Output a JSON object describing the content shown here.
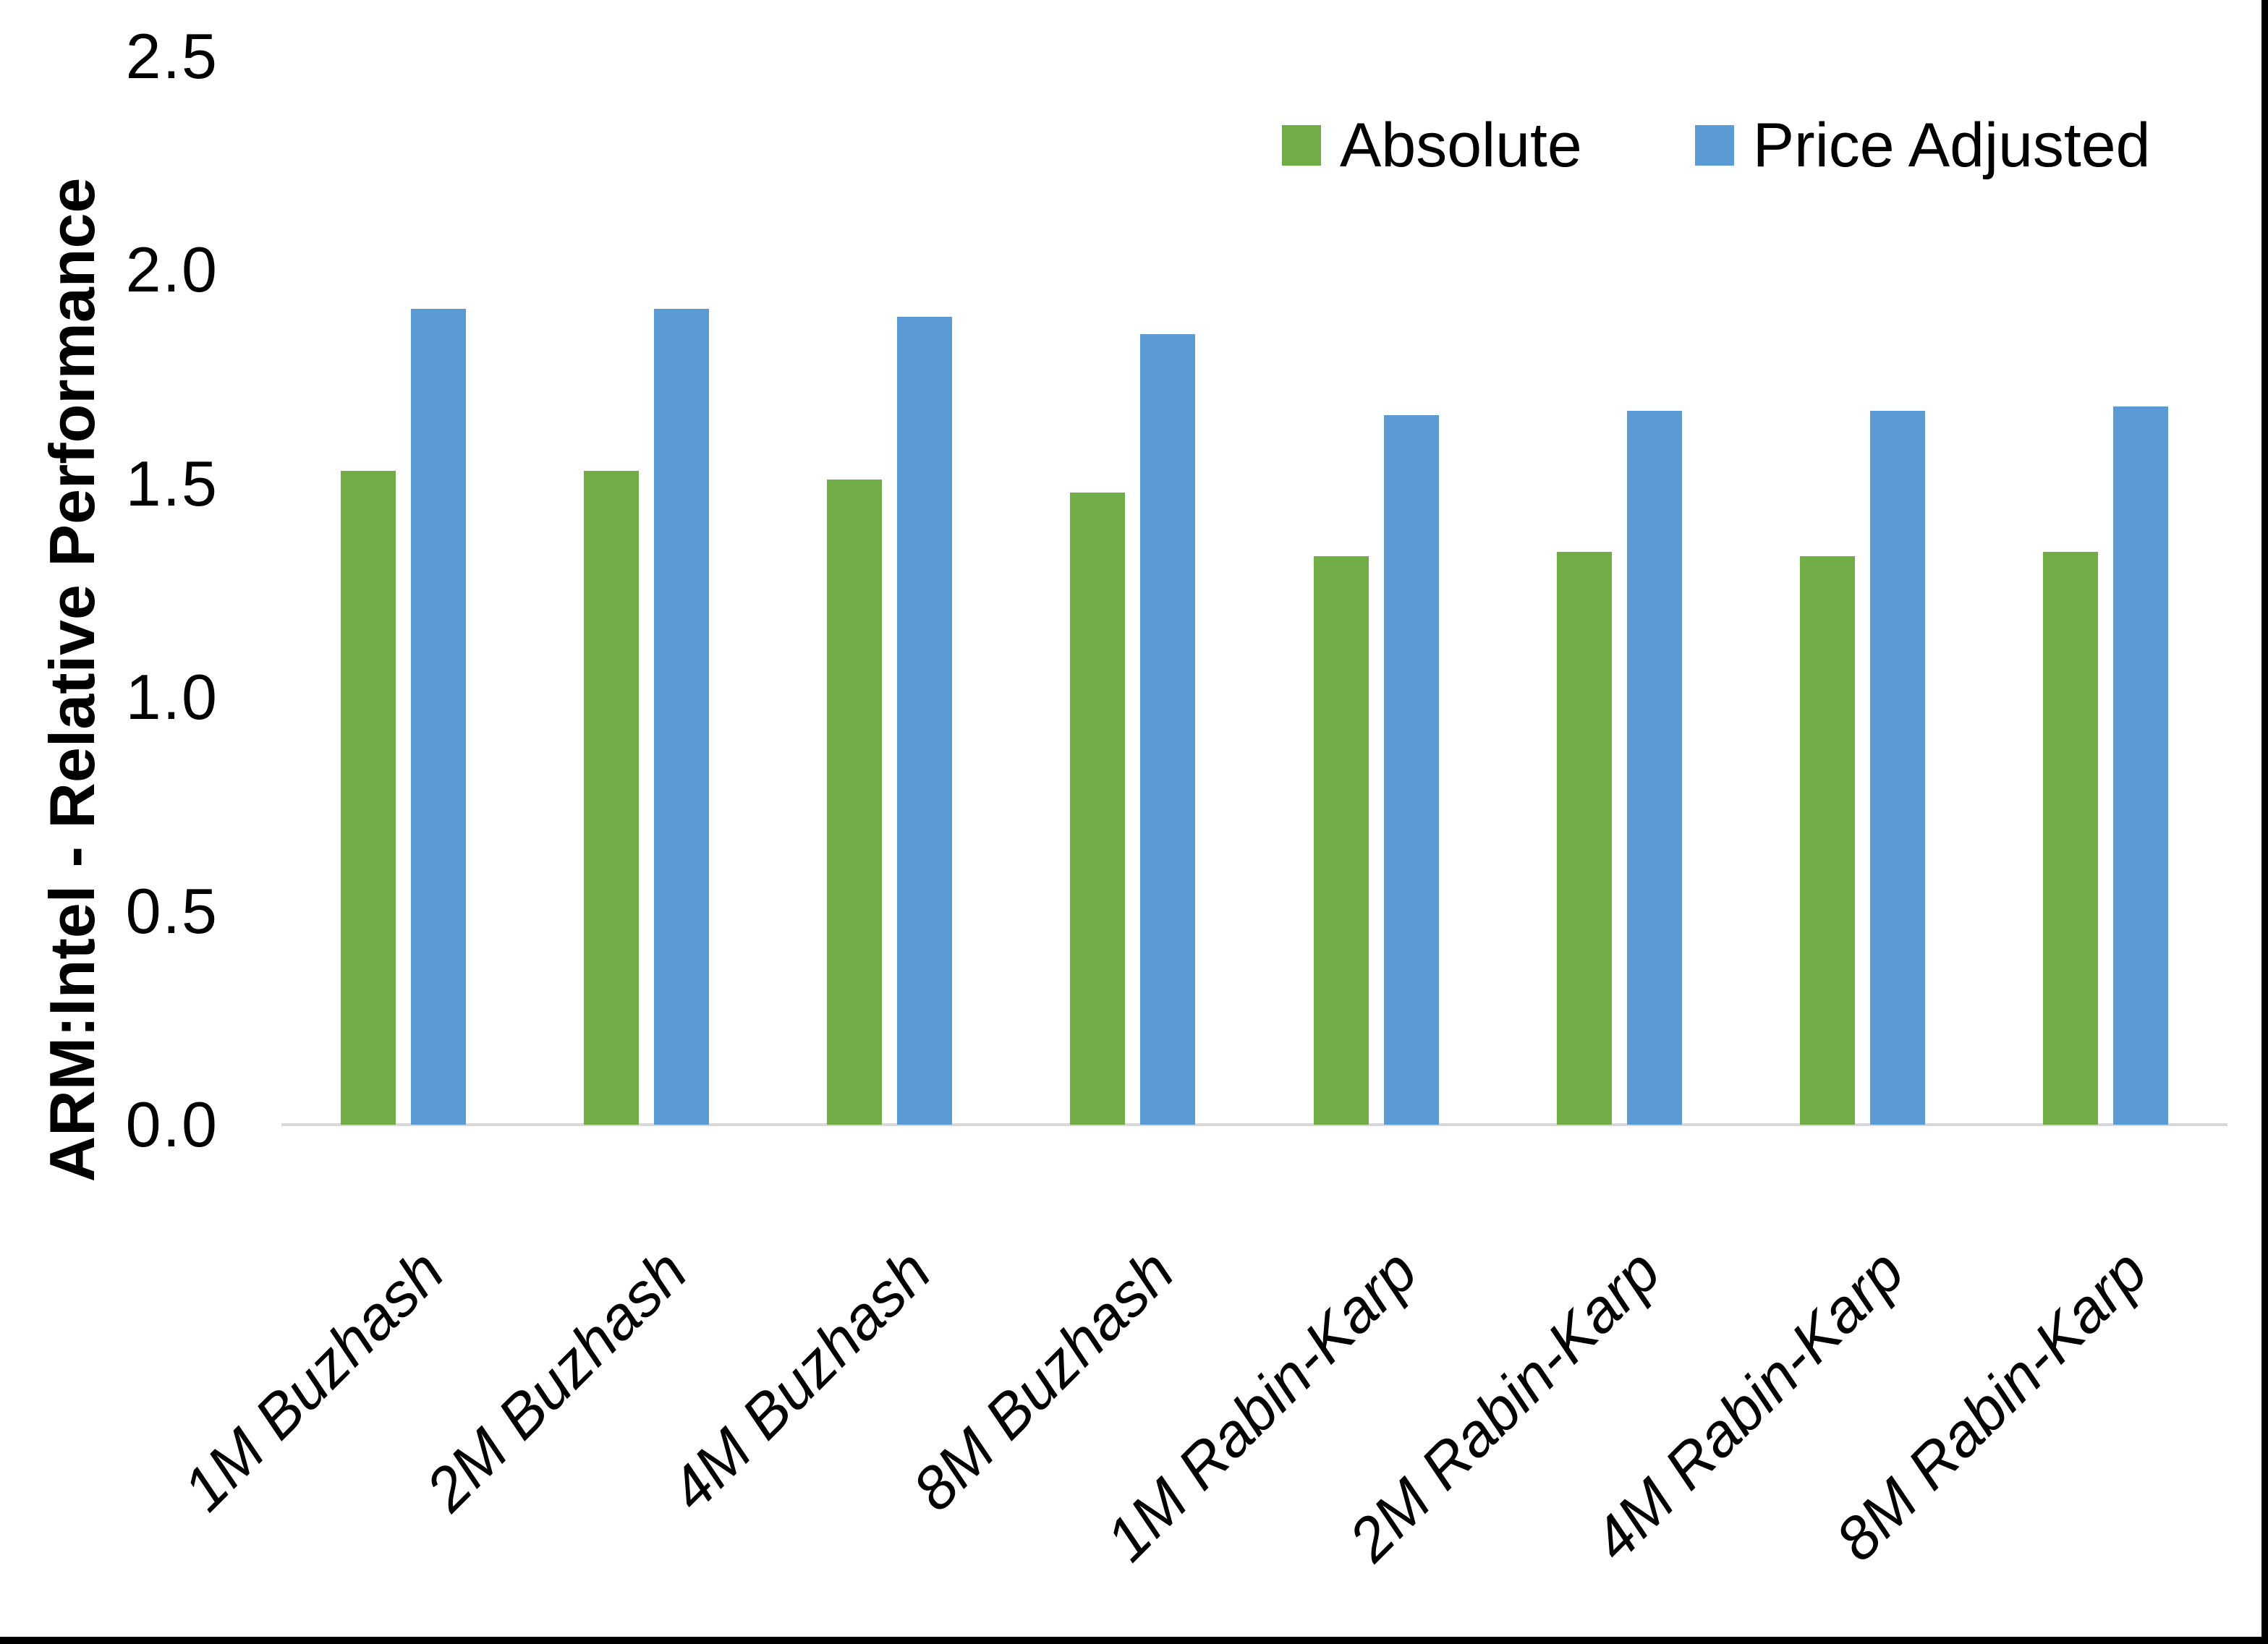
{
  "chart_data": {
    "type": "bar",
    "title": "",
    "categories": [
      "1M Buzhash",
      "2M Buzhash",
      "4M Buzhash",
      "8M Buzhash",
      "1M Rabin-Karp",
      "2M Rabin-Karp",
      "4M Rabin-Karp",
      "8M Rabin-Karp"
    ],
    "series": [
      {
        "name": "Absolute",
        "color": "#70AD47",
        "values": [
          1.53,
          1.53,
          1.51,
          1.48,
          1.33,
          1.34,
          1.33,
          1.34
        ]
      },
      {
        "name": "Price Adjusted",
        "color": "#5B9BD5",
        "values": [
          1.91,
          1.91,
          1.89,
          1.85,
          1.66,
          1.67,
          1.67,
          1.68
        ]
      }
    ],
    "xlabel": "",
    "ylabel": "ARM:Intel - Relative Performance",
    "ylim": [
      0,
      2.5
    ],
    "ytick_labels": [
      "0.0",
      "0.5",
      "1.0",
      "1.5",
      "2.0",
      "2.5"
    ],
    "grid": false,
    "legend_position": "top-right",
    "axis_line_color": "#D9D9D9",
    "text_color": "#000000",
    "background": "#FFFFFF",
    "frame_border_color": "#000000"
  }
}
